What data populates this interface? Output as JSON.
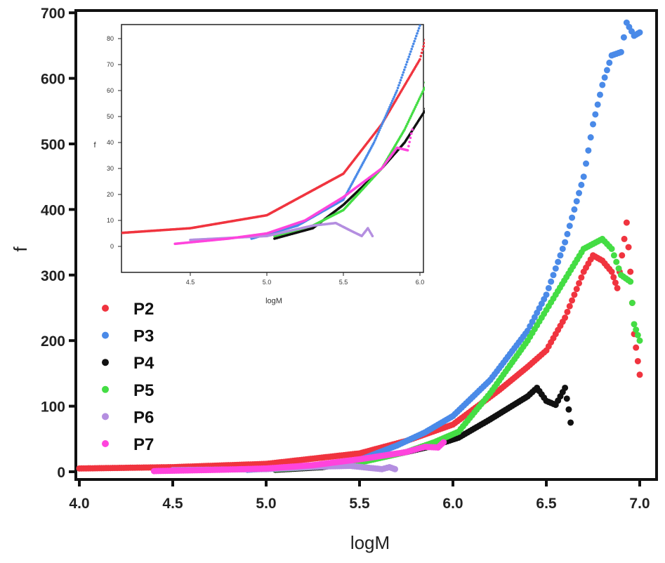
{
  "chart_data": [
    {
      "type": "scatter",
      "title": "",
      "xlabel": "logM",
      "ylabel": "f",
      "xlim": [
        4.0,
        7.1
      ],
      "ylim": [
        -10,
        700
      ],
      "xticks": [
        "4.0",
        "4.5",
        "5.0",
        "5.5",
        "6.0",
        "6.5",
        "7.0"
      ],
      "yticks": [
        "0",
        "100",
        "200",
        "300",
        "400",
        "500",
        "600",
        "700"
      ],
      "legend": "left",
      "grid": false,
      "series": [
        {
          "name": "P2",
          "color": "#f0343f",
          "points": [
            [
              4.0,
              5
            ],
            [
              4.5,
              7
            ],
            [
              5.0,
              12
            ],
            [
              5.25,
              20
            ],
            [
              5.5,
              28
            ],
            [
              5.75,
              47
            ],
            [
              6.0,
              72
            ],
            [
              6.25,
              125
            ],
            [
              6.4,
              160
            ],
            [
              6.5,
              185
            ],
            [
              6.6,
              235
            ],
            [
              6.7,
              305
            ],
            [
              6.75,
              330
            ],
            [
              6.8,
              322
            ],
            [
              6.85,
              305
            ],
            [
              6.88,
              280
            ],
            [
              6.93,
              380
            ],
            [
              6.95,
              305
            ],
            [
              6.97,
              210
            ],
            [
              7.0,
              148
            ]
          ]
        },
        {
          "name": "P3",
          "color": "#4a8ae8",
          "points": [
            [
              4.9,
              3
            ],
            [
              5.2,
              8
            ],
            [
              5.5,
              18
            ],
            [
              5.7,
              40
            ],
            [
              5.85,
              60
            ],
            [
              6.0,
              85
            ],
            [
              6.2,
              140
            ],
            [
              6.4,
              215
            ],
            [
              6.5,
              270
            ],
            [
              6.6,
              350
            ],
            [
              6.7,
              450
            ],
            [
              6.75,
              530
            ],
            [
              6.8,
              590
            ],
            [
              6.85,
              635
            ],
            [
              6.9,
              640
            ],
            [
              6.93,
              685
            ],
            [
              6.97,
              665
            ],
            [
              7.0,
              670
            ]
          ]
        },
        {
          "name": "P4",
          "color": "#111111",
          "points": [
            [
              5.05,
              3
            ],
            [
              5.3,
              7
            ],
            [
              5.5,
              16
            ],
            [
              5.75,
              30
            ],
            [
              5.9,
              40
            ],
            [
              6.03,
              52
            ],
            [
              6.2,
              80
            ],
            [
              6.4,
              115
            ],
            [
              6.45,
              128
            ],
            [
              6.5,
              108
            ],
            [
              6.55,
              102
            ],
            [
              6.6,
              128
            ],
            [
              6.62,
              95
            ],
            [
              6.63,
              75
            ]
          ]
        },
        {
          "name": "P5",
          "color": "#44dd44",
          "points": [
            [
              5.05,
              4
            ],
            [
              5.3,
              8
            ],
            [
              5.5,
              14
            ],
            [
              5.75,
              30
            ],
            [
              5.9,
              45
            ],
            [
              6.03,
              61
            ],
            [
              6.2,
              120
            ],
            [
              6.4,
              200
            ],
            [
              6.55,
              270
            ],
            [
              6.7,
              340
            ],
            [
              6.8,
              355
            ],
            [
              6.85,
              340
            ],
            [
              6.9,
              300
            ],
            [
              6.95,
              290
            ],
            [
              6.97,
              225
            ],
            [
              7.0,
              200
            ]
          ]
        },
        {
          "name": "P6",
          "color": "#b48ee0",
          "points": [
            [
              4.5,
              2.5
            ],
            [
              5.0,
              4
            ],
            [
              5.3,
              8
            ],
            [
              5.45,
              9
            ],
            [
              5.55,
              6
            ],
            [
              5.62,
              4
            ],
            [
              5.66,
              7
            ],
            [
              5.69,
              4
            ]
          ]
        },
        {
          "name": "P7",
          "color": "#ff44dd",
          "points": [
            [
              4.4,
              1
            ],
            [
              4.75,
              3
            ],
            [
              5.0,
              5
            ],
            [
              5.25,
              10
            ],
            [
              5.5,
              19
            ],
            [
              5.75,
              30
            ],
            [
              5.85,
              38
            ],
            [
              5.92,
              37
            ],
            [
              5.95,
              45
            ]
          ]
        }
      ]
    },
    {
      "type": "scatter",
      "title": "",
      "xlabel": "logM",
      "ylabel": "f",
      "xlim": [
        4.0,
        6.03
      ],
      "ylim": [
        -10,
        85
      ],
      "xticks": [
        "4.5",
        "5.0",
        "5.5",
        "6.0"
      ],
      "yticks": [
        "0",
        "10",
        "20",
        "30",
        "40",
        "50",
        "60",
        "70",
        "80"
      ],
      "grid": false,
      "series_ref": "same series as main plot (inset zoom)"
    }
  ]
}
